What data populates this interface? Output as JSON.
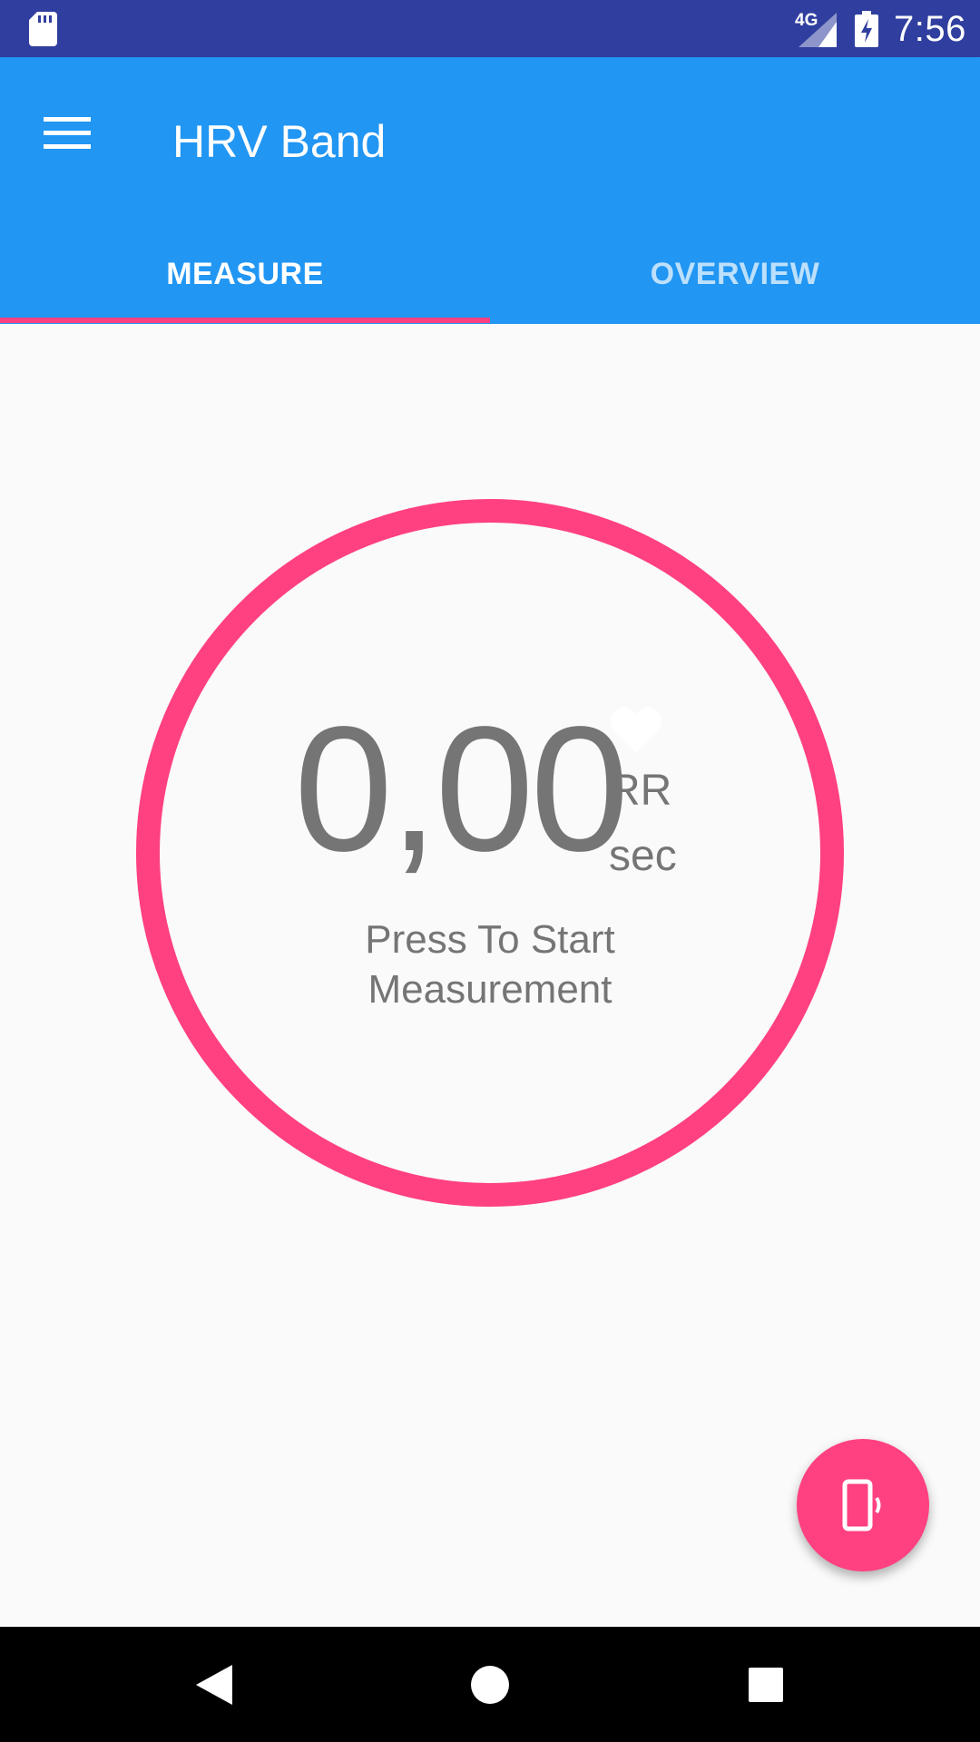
{
  "status_bar": {
    "network": "4G",
    "time": "7:56",
    "icons": [
      "sd-card-icon",
      "signal-icon",
      "battery-charging-icon"
    ]
  },
  "app_bar": {
    "title": "HRV Band",
    "menu_icon": "menu-icon",
    "tabs": [
      {
        "label": "MEASURE",
        "active": true
      },
      {
        "label": "OVERVIEW",
        "active": false
      }
    ]
  },
  "measurement": {
    "value": "0,00",
    "unit_type": "RR",
    "unit": "sec",
    "prompt": "Press To Start Measurement",
    "heart_icon": "heart-icon"
  },
  "fab": {
    "icon": "phone-vibrate-icon"
  },
  "nav_bar": {
    "icons": [
      "back-icon",
      "home-icon",
      "recents-icon"
    ]
  },
  "colors": {
    "status_bar": "#303f9f",
    "primary": "#2196f3",
    "accent": "#ff4081",
    "text_secondary": "#757575",
    "background": "#fafafa"
  }
}
